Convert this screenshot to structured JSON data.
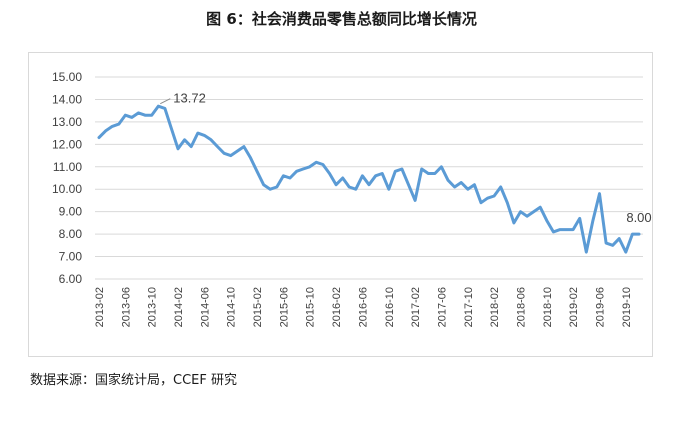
{
  "title": "图 6：社会消费品零售总额同比增长情况",
  "source": "数据来源：国家统计局，CCEF 研究",
  "colors": {
    "line": "#5b9bd5",
    "grid": "#d9d9d9",
    "frame": "#d9d9d9",
    "text": "#404040"
  },
  "chart_data": {
    "type": "line",
    "title": "图 6：社会消费品零售总额同比增长情况",
    "xlabel": "",
    "ylabel": "",
    "ylim": [
      6.0,
      15.0
    ],
    "y_ticks": [
      "6.00",
      "7.00",
      "8.00",
      "9.00",
      "10.00",
      "11.00",
      "12.00",
      "13.00",
      "14.00",
      "15.00"
    ],
    "x_tick_labels": [
      "2013-02",
      "2013-06",
      "2013-10",
      "2014-02",
      "2014-06",
      "2014-10",
      "2015-02",
      "2015-06",
      "2015-10",
      "2016-02",
      "2016-06",
      "2016-10",
      "2017-02",
      "2017-06",
      "2017-10",
      "2018-02",
      "2018-06",
      "2018-10",
      "2019-02",
      "2019-06",
      "2019-10"
    ],
    "grid": true,
    "legend": "none",
    "series": [
      {
        "x": [
          "2013-02",
          "2013-03",
          "2013-04",
          "2013-05",
          "2013-06",
          "2013-07",
          "2013-08",
          "2013-09",
          "2013-10",
          "2013-11",
          "2013-12",
          "2014-01",
          "2014-02",
          "2014-03",
          "2014-04",
          "2014-05",
          "2014-06",
          "2014-07",
          "2014-08",
          "2014-09",
          "2014-10",
          "2014-11",
          "2014-12",
          "2015-01",
          "2015-02",
          "2015-03",
          "2015-04",
          "2015-05",
          "2015-06",
          "2015-07",
          "2015-08",
          "2015-09",
          "2015-10",
          "2015-11",
          "2015-12",
          "2016-01",
          "2016-02",
          "2016-03",
          "2016-04",
          "2016-05",
          "2016-06",
          "2016-07",
          "2016-08",
          "2016-09",
          "2016-10",
          "2016-11",
          "2016-12",
          "2017-01",
          "2017-02",
          "2017-03",
          "2017-04",
          "2017-05",
          "2017-06",
          "2017-07",
          "2017-08",
          "2017-09",
          "2017-10",
          "2017-11",
          "2017-12",
          "2018-01",
          "2018-02",
          "2018-03",
          "2018-04",
          "2018-05",
          "2018-06",
          "2018-07",
          "2018-08",
          "2018-09",
          "2018-10",
          "2018-11",
          "2018-12",
          "2019-01",
          "2019-02",
          "2019-03",
          "2019-04",
          "2019-05",
          "2019-06",
          "2019-07",
          "2019-08",
          "2019-09",
          "2019-10",
          "2019-11",
          "2019-12"
        ],
        "values": [
          12.3,
          12.6,
          12.8,
          12.9,
          13.3,
          13.2,
          13.4,
          13.3,
          13.3,
          13.7,
          13.6,
          12.7,
          11.8,
          12.2,
          11.9,
          12.5,
          12.4,
          12.2,
          11.9,
          11.6,
          11.5,
          11.7,
          11.9,
          11.4,
          10.8,
          10.2,
          10.0,
          10.1,
          10.6,
          10.5,
          10.8,
          10.9,
          11.0,
          11.2,
          11.1,
          10.7,
          10.2,
          10.5,
          10.1,
          10.0,
          10.6,
          10.2,
          10.6,
          10.7,
          10.0,
          10.8,
          10.9,
          10.2,
          9.5,
          10.9,
          10.7,
          10.7,
          11.0,
          10.4,
          10.1,
          10.3,
          10.0,
          10.2,
          9.4,
          9.6,
          9.7,
          10.1,
          9.4,
          8.5,
          9.0,
          8.8,
          9.0,
          9.2,
          8.6,
          8.1,
          8.2,
          8.2,
          8.2,
          8.7,
          7.2,
          8.6,
          9.8,
          7.6,
          7.5,
          7.8,
          7.2,
          8.0,
          8.0
        ]
      }
    ],
    "annotations": [
      {
        "x": "2013-11",
        "y": 13.72,
        "text": "13.72"
      },
      {
        "x": "2019-12",
        "y": 8.0,
        "text": "8.00"
      }
    ]
  }
}
